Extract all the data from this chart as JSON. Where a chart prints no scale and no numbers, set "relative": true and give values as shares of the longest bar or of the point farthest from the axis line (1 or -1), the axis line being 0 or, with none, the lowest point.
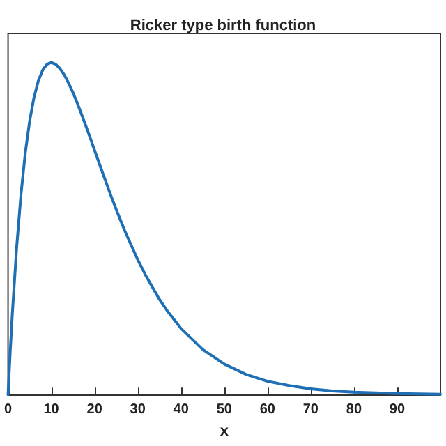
{
  "chart_data": {
    "type": "line",
    "title": "Ricker type birth function",
    "xlabel": "x",
    "relative": true,
    "x": [
      0,
      0.5,
      1,
      2,
      3,
      4,
      5,
      6,
      7,
      8,
      9,
      10,
      11,
      12,
      13,
      14,
      15,
      16,
      17,
      18,
      19,
      20,
      22,
      24,
      25,
      27,
      30,
      32,
      35,
      37,
      40,
      45,
      50,
      55,
      60,
      65,
      70,
      75,
      80,
      85,
      90,
      95,
      100
    ],
    "series": [
      {
        "color": "#1f6fb4",
        "values": [
          0,
          0.129,
          0.246,
          0.445,
          0.604,
          0.729,
          0.824,
          0.895,
          0.945,
          0.977,
          0.995,
          1,
          0.995,
          0.982,
          0.963,
          0.938,
          0.91,
          0.878,
          0.844,
          0.809,
          0.773,
          0.736,
          0.663,
          0.592,
          0.558,
          0.493,
          0.406,
          0.355,
          0.287,
          0.249,
          0.199,
          0.136,
          0.092,
          0.061,
          0.04,
          0.027,
          0.017,
          0.011,
          0.007,
          0.005,
          0.003,
          0.002,
          0.001
        ]
      }
    ],
    "xlim": [
      0,
      100
    ],
    "xticks": [
      0,
      10,
      20,
      30,
      40,
      50,
      60,
      70,
      80,
      90
    ],
    "grid": false,
    "marker": "none",
    "line_style": "solid"
  }
}
